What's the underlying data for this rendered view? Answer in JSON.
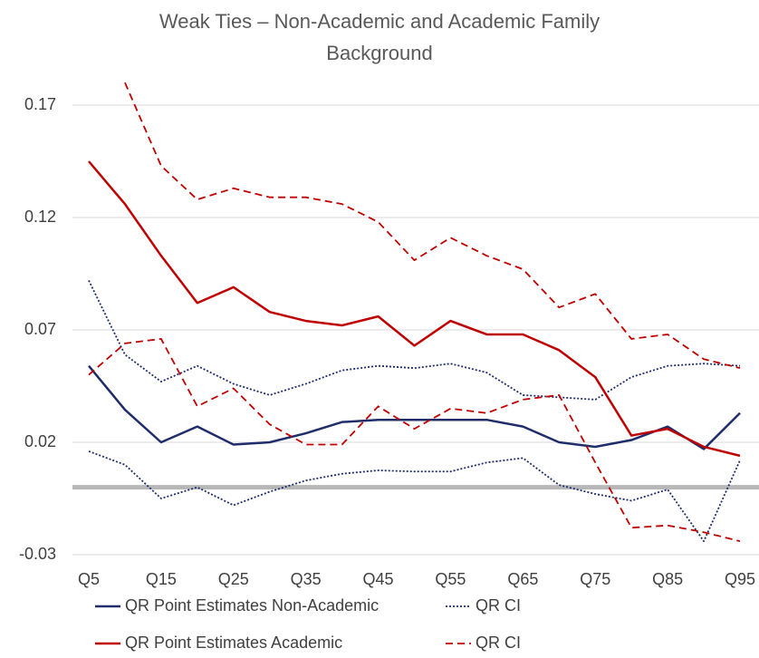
{
  "chart_data": {
    "type": "line",
    "title": "Weak Ties – Non-Academic and Academic Family Background",
    "categories": [
      "Q5",
      null,
      "Q15",
      null,
      "Q25",
      null,
      "Q35",
      null,
      "Q45",
      null,
      "Q55",
      null,
      "Q65",
      null,
      "Q75",
      null,
      "Q85",
      null,
      "Q95"
    ],
    "ylim": [
      -0.03,
      0.18
    ],
    "yticks": [
      -0.03,
      0.02,
      0.07,
      0.12,
      0.17
    ],
    "grid": true,
    "zero_line": true,
    "legend": "bottom",
    "series": [
      {
        "name": "QR Point Estimates Non-Academic",
        "color": "#1f2d6b",
        "dash": "solid",
        "values": [
          0.054,
          0.0345,
          0.02,
          0.027,
          0.019,
          0.02,
          0.024,
          0.029,
          0.03,
          0.03,
          0.03,
          0.03,
          0.027,
          0.02,
          0.018,
          0.021,
          0.027,
          0.017,
          0.033
        ]
      },
      {
        "name": "QR CI",
        "color": "#1f2d6b",
        "dash": "dotted",
        "values": [
          0.092,
          0.059,
          0.047,
          0.054,
          0.046,
          0.041,
          0.046,
          0.052,
          0.054,
          0.053,
          0.055,
          0.051,
          0.041,
          0.04,
          0.039,
          0.049,
          0.054,
          0.055,
          0.054
        ]
      },
      {
        "color": "#1f2d6b",
        "dash": "dotted",
        "values": [
          0.016,
          0.01,
          -0.005,
          0.0,
          -0.008,
          -0.002,
          0.003,
          0.006,
          0.0075,
          0.007,
          0.007,
          0.011,
          0.013,
          0.001,
          -0.003,
          -0.006,
          -0.001,
          -0.024,
          0.012
        ]
      },
      {
        "name": "QR Point Estimates Academic",
        "color": "#c00000",
        "dash": "solid",
        "values": [
          0.145,
          0.126,
          0.103,
          0.082,
          0.089,
          0.078,
          0.074,
          0.072,
          0.076,
          0.063,
          0.074,
          0.068,
          0.068,
          0.061,
          0.049,
          0.023,
          0.026,
          0.018,
          0.014
        ]
      },
      {
        "name": "QR CI",
        "color": "#c00000",
        "dash": "dashed",
        "values": [
          null,
          0.18,
          0.143,
          0.128,
          0.133,
          0.129,
          0.129,
          0.126,
          0.118,
          0.101,
          0.111,
          0.103,
          0.097,
          0.08,
          0.086,
          0.066,
          0.068,
          0.057,
          0.053
        ]
      },
      {
        "color": "#c00000",
        "dash": "dashed",
        "values": [
          0.05,
          0.064,
          0.066,
          0.036,
          0.044,
          0.028,
          0.019,
          0.019,
          0.036,
          0.026,
          0.035,
          0.033,
          0.039,
          0.041,
          0.011,
          -0.018,
          -0.017,
          -0.02,
          -0.024
        ]
      }
    ]
  }
}
